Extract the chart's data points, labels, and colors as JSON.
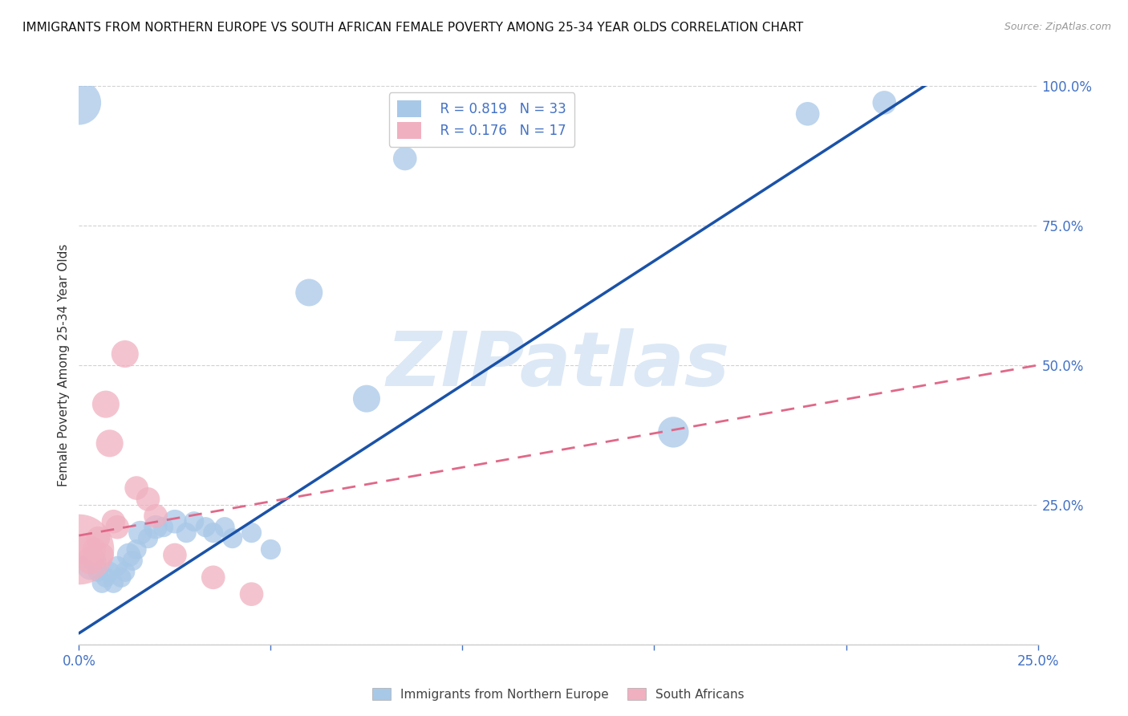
{
  "title": "IMMIGRANTS FROM NORTHERN EUROPE VS SOUTH AFRICAN FEMALE POVERTY AMONG 25-34 YEAR OLDS CORRELATION CHART",
  "source": "Source: ZipAtlas.com",
  "ylabel": "Female Poverty Among 25-34 Year Olds",
  "watermark": "ZIPatlas",
  "legend_blue_r": "R = 0.819",
  "legend_blue_n": "N = 33",
  "legend_pink_r": "R = 0.176",
  "legend_pink_n": "N = 17",
  "legend_blue_label": "Immigrants from Northern Europe",
  "legend_pink_label": "South Africans",
  "xlim": [
    0.0,
    0.25
  ],
  "ylim": [
    0.0,
    1.0
  ],
  "xticks": [
    0.0,
    0.05,
    0.1,
    0.15,
    0.2,
    0.25
  ],
  "yticks": [
    0.0,
    0.25,
    0.5,
    0.75,
    1.0
  ],
  "blue_points": [
    [
      0.0,
      0.97,
      12
    ],
    [
      0.003,
      0.14,
      7
    ],
    [
      0.004,
      0.15,
      6
    ],
    [
      0.005,
      0.13,
      5
    ],
    [
      0.006,
      0.11,
      5
    ],
    [
      0.007,
      0.12,
      5
    ],
    [
      0.008,
      0.13,
      5
    ],
    [
      0.009,
      0.11,
      5
    ],
    [
      0.01,
      0.14,
      5
    ],
    [
      0.011,
      0.12,
      5
    ],
    [
      0.012,
      0.13,
      5
    ],
    [
      0.013,
      0.16,
      6
    ],
    [
      0.014,
      0.15,
      5
    ],
    [
      0.015,
      0.17,
      5
    ],
    [
      0.016,
      0.2,
      6
    ],
    [
      0.018,
      0.19,
      5
    ],
    [
      0.02,
      0.21,
      6
    ],
    [
      0.022,
      0.21,
      5
    ],
    [
      0.025,
      0.22,
      6
    ],
    [
      0.028,
      0.2,
      5
    ],
    [
      0.03,
      0.22,
      5
    ],
    [
      0.033,
      0.21,
      5
    ],
    [
      0.035,
      0.2,
      5
    ],
    [
      0.038,
      0.21,
      5
    ],
    [
      0.04,
      0.19,
      5
    ],
    [
      0.045,
      0.2,
      5
    ],
    [
      0.05,
      0.17,
      5
    ],
    [
      0.06,
      0.63,
      7
    ],
    [
      0.075,
      0.44,
      7
    ],
    [
      0.085,
      0.87,
      6
    ],
    [
      0.155,
      0.38,
      8
    ],
    [
      0.19,
      0.95,
      6
    ],
    [
      0.21,
      0.97,
      6
    ]
  ],
  "pink_points": [
    [
      0.0,
      0.17,
      20
    ],
    [
      0.002,
      0.17,
      8
    ],
    [
      0.003,
      0.15,
      7
    ],
    [
      0.004,
      0.17,
      6
    ],
    [
      0.005,
      0.19,
      6
    ],
    [
      0.006,
      0.16,
      6
    ],
    [
      0.007,
      0.43,
      7
    ],
    [
      0.008,
      0.36,
      7
    ],
    [
      0.009,
      0.22,
      6
    ],
    [
      0.01,
      0.21,
      6
    ],
    [
      0.012,
      0.52,
      7
    ],
    [
      0.015,
      0.28,
      6
    ],
    [
      0.018,
      0.26,
      6
    ],
    [
      0.02,
      0.23,
      6
    ],
    [
      0.025,
      0.16,
      6
    ],
    [
      0.035,
      0.12,
      6
    ],
    [
      0.045,
      0.09,
      6
    ]
  ],
  "blue_line_x": [
    0.0,
    0.225
  ],
  "blue_line_y": [
    0.02,
    1.02
  ],
  "pink_line_x": [
    0.0,
    0.25
  ],
  "pink_line_y": [
    0.195,
    0.5
  ],
  "background_color": "#ffffff",
  "blue_color": "#a8c8e8",
  "pink_color": "#f0b0c0",
  "blue_line_color": "#1a52a8",
  "pink_line_color": "#e06888",
  "axis_color": "#4472c4",
  "title_color": "#111111",
  "watermark_color": "#dce8f5",
  "grid_color": "#cccccc"
}
